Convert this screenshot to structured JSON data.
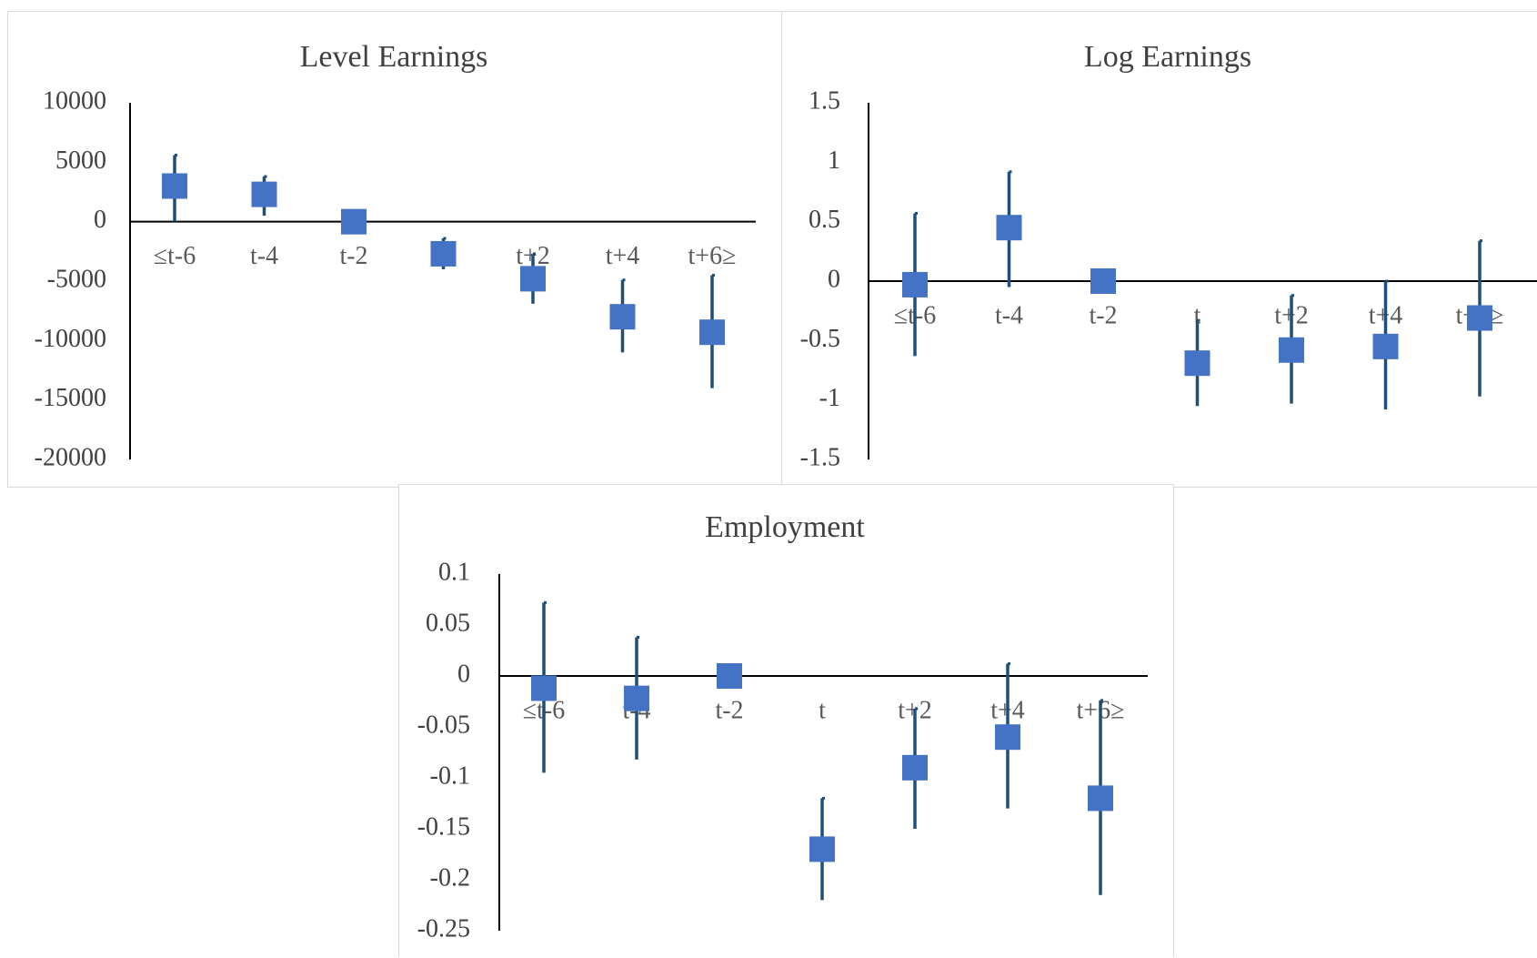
{
  "chart_data": [
    {
      "type": "scatter",
      "title": "Level Earnings",
      "categories": [
        "≤t-6",
        "t-4",
        "t-2",
        "t",
        "t+2",
        "t+4",
        "t+6≥"
      ],
      "y_ticks": [
        "10000",
        "5000",
        "0",
        "-5000",
        "-10000",
        "-15000",
        "-20000"
      ],
      "ylim": [
        -20000,
        10000
      ],
      "series": [
        {
          "values": [
            3000,
            2300,
            0,
            -2700,
            -4800,
            -8000,
            -9300
          ],
          "ci_low": [
            0,
            500,
            0,
            -4000,
            -6900,
            -11000,
            -14000
          ],
          "ci_high": [
            5600,
            3800,
            0,
            -1400,
            -2700,
            -4900,
            -4500
          ]
        }
      ],
      "grid": false,
      "legend": "none",
      "colors": {
        "marker": "#4472c4",
        "error_bar": "#1f4e79"
      }
    },
    {
      "type": "scatter",
      "title": "Log Earnings",
      "categories": [
        "≤t-6",
        "t-4",
        "t-2",
        "t",
        "t+2",
        "t+4",
        "t+6≥"
      ],
      "y_ticks": [
        "1.5",
        "1",
        "0.5",
        "0",
        "-0.5",
        "-1",
        "-1.5"
      ],
      "ylim": [
        -1.5,
        1.5
      ],
      "series": [
        {
          "values": [
            -0.03,
            0.45,
            0,
            -0.69,
            -0.58,
            -0.55,
            -0.31
          ],
          "ci_low": [
            -0.63,
            -0.05,
            0,
            -1.05,
            -1.03,
            -1.08,
            -0.97
          ],
          "ci_high": [
            0.57,
            0.92,
            0,
            -0.33,
            -0.12,
            0,
            0.34
          ]
        }
      ],
      "grid": false,
      "legend": "none",
      "colors": {
        "marker": "#4472c4",
        "error_bar": "#1f4e79"
      }
    },
    {
      "type": "scatter",
      "title": "Employment",
      "categories": [
        "≤t-6",
        "t-4",
        "t-2",
        "t",
        "t+2",
        "t+4",
        "t+6≥"
      ],
      "y_ticks": [
        "0.1",
        "0.05",
        "0",
        "-0.05",
        "-0.1",
        "-0.15",
        "-0.2",
        "-0.25"
      ],
      "ylim": [
        -0.25,
        0.1
      ],
      "series": [
        {
          "values": [
            -0.012,
            -0.022,
            0,
            -0.17,
            -0.09,
            -0.06,
            -0.12
          ],
          "ci_low": [
            -0.095,
            -0.082,
            0,
            -0.22,
            -0.15,
            -0.13,
            -0.215
          ],
          "ci_high": [
            0.072,
            0.038,
            0,
            -0.12,
            -0.032,
            0.012,
            -0.024
          ]
        }
      ],
      "grid": false,
      "legend": "none",
      "colors": {
        "marker": "#4472c4",
        "error_bar": "#1f4e79"
      }
    }
  ]
}
